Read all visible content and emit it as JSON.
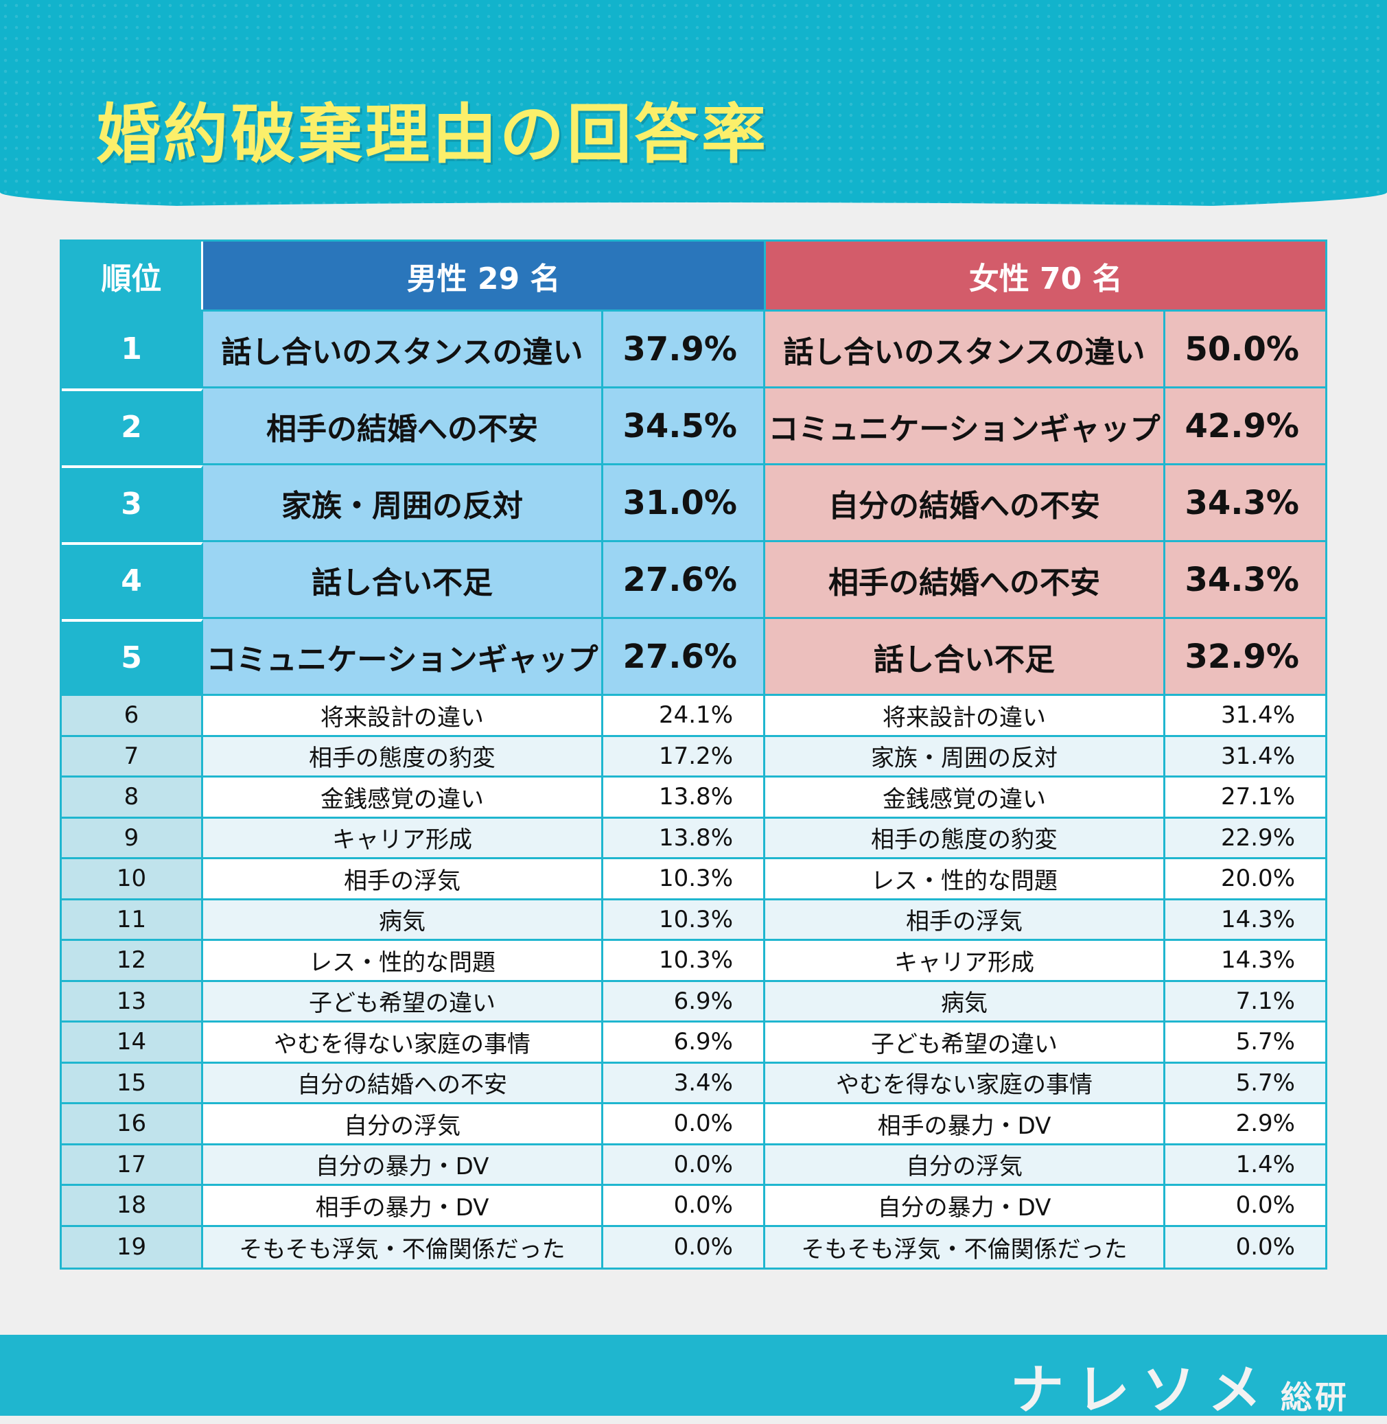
{
  "title": "婚約破棄理由の回答率",
  "table": {
    "rank_header": "順位",
    "male_header": "男性 29 名",
    "female_header": "女性 70 名",
    "rows": [
      {
        "rank": "1",
        "male_reason": "話し合いのスタンスの違い",
        "male_pct": "37.9%",
        "female_reason": "話し合いのスタンスの違い",
        "female_pct": "50.0%"
      },
      {
        "rank": "2",
        "male_reason": "相手の結婚への不安",
        "male_pct": "34.5%",
        "female_reason": "コミュニケーションギャップ",
        "female_pct": "42.9%"
      },
      {
        "rank": "3",
        "male_reason": "家族・周囲の反対",
        "male_pct": "31.0%",
        "female_reason": "自分の結婚への不安",
        "female_pct": "34.3%"
      },
      {
        "rank": "4",
        "male_reason": "話し合い不足",
        "male_pct": "27.6%",
        "female_reason": "相手の結婚への不安",
        "female_pct": "34.3%"
      },
      {
        "rank": "5",
        "male_reason": "コミュニケーションギャップ",
        "male_pct": "27.6%",
        "female_reason": "話し合い不足",
        "female_pct": "32.9%"
      },
      {
        "rank": "6",
        "male_reason": "将来設計の違い",
        "male_pct": "24.1%",
        "female_reason": "将来設計の違い",
        "female_pct": "31.4%"
      },
      {
        "rank": "7",
        "male_reason": "相手の態度の豹変",
        "male_pct": "17.2%",
        "female_reason": "家族・周囲の反対",
        "female_pct": "31.4%"
      },
      {
        "rank": "8",
        "male_reason": "金銭感覚の違い",
        "male_pct": "13.8%",
        "female_reason": "金銭感覚の違い",
        "female_pct": "27.1%"
      },
      {
        "rank": "9",
        "male_reason": "キャリア形成",
        "male_pct": "13.8%",
        "female_reason": "相手の態度の豹変",
        "female_pct": "22.9%"
      },
      {
        "rank": "10",
        "male_reason": "相手の浮気",
        "male_pct": "10.3%",
        "female_reason": "レス・性的な問題",
        "female_pct": "20.0%"
      },
      {
        "rank": "11",
        "male_reason": "病気",
        "male_pct": "10.3%",
        "female_reason": "相手の浮気",
        "female_pct": "14.3%"
      },
      {
        "rank": "12",
        "male_reason": "レス・性的な問題",
        "male_pct": "10.3%",
        "female_reason": "キャリア形成",
        "female_pct": "14.3%"
      },
      {
        "rank": "13",
        "male_reason": "子ども希望の違い",
        "male_pct": "6.9%",
        "female_reason": "病気",
        "female_pct": "7.1%"
      },
      {
        "rank": "14",
        "male_reason": "やむを得ない家庭の事情",
        "male_pct": "6.9%",
        "female_reason": "子ども希望の違い",
        "female_pct": "5.7%"
      },
      {
        "rank": "15",
        "male_reason": "自分の結婚への不安",
        "male_pct": "3.4%",
        "female_reason": "やむを得ない家庭の事情",
        "female_pct": "5.7%"
      },
      {
        "rank": "16",
        "male_reason": "自分の浮気",
        "male_pct": "0.0%",
        "female_reason": "相手の暴力・DV",
        "female_pct": "2.9%"
      },
      {
        "rank": "17",
        "male_reason": "自分の暴力・DV",
        "male_pct": "0.0%",
        "female_reason": "自分の浮気",
        "female_pct": "1.4%"
      },
      {
        "rank": "18",
        "male_reason": "相手の暴力・DV",
        "male_pct": "0.0%",
        "female_reason": "自分の暴力・DV",
        "female_pct": "0.0%"
      },
      {
        "rank": "19",
        "male_reason": "そもそも浮気・不倫関係だった",
        "male_pct": "0.0%",
        "female_reason": "そもそも浮気・不倫関係だった",
        "female_pct": "0.0%"
      }
    ]
  },
  "footer": {
    "logo_main": "ナレソメ",
    "logo_sub": "総研"
  }
}
